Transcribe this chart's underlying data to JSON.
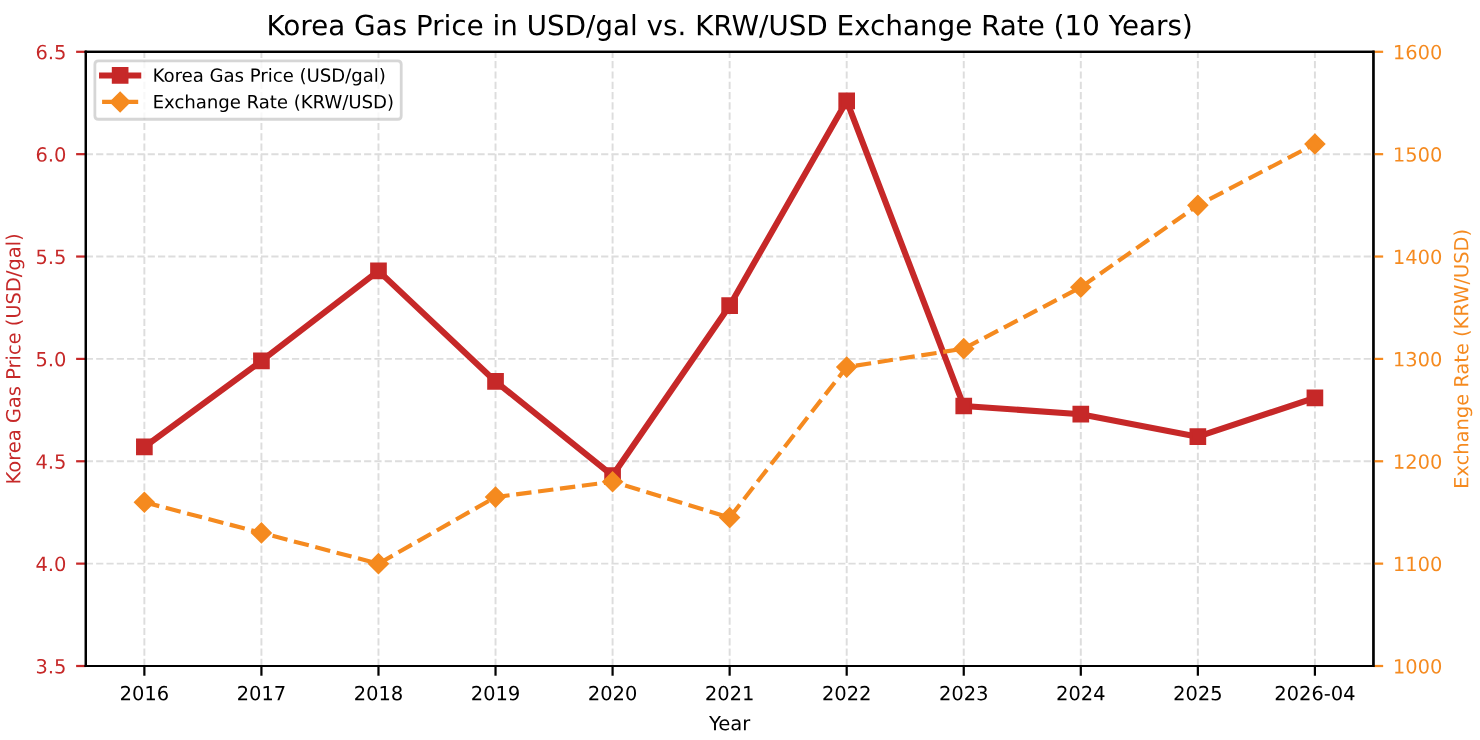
{
  "chart_data": {
    "type": "line",
    "title": "Korea Gas Price in USD/gal vs. KRW/USD Exchange Rate (10 Years)",
    "xlabel": "Year",
    "ylabel": "Korea Gas Price (USD/gal)",
    "y2label": "Exchange Rate (KRW/USD)",
    "categories": [
      "2016",
      "2017",
      "2018",
      "2019",
      "2020",
      "2021",
      "2022",
      "2023",
      "2024",
      "2025",
      "2026-04"
    ],
    "series": [
      {
        "name": "Korea Gas Price (USD/gal)",
        "color": "#c62828",
        "marker": "square",
        "line_style": "solid",
        "values": [
          4.57,
          4.99,
          5.43,
          4.89,
          4.43,
          5.26,
          6.26,
          4.77,
          4.73,
          4.62,
          4.81
        ]
      },
      {
        "name": "Exchange Rate (KRW/USD)",
        "color": "#f58a1f",
        "marker": "diamond",
        "line_style": "dashed",
        "axis": "y2",
        "values": [
          1160,
          1130,
          1100,
          1165,
          1180,
          1145,
          1292,
          1310,
          1370,
          1450,
          1510
        ]
      }
    ],
    "ylim": [
      3.5,
      6.5
    ],
    "yticks": [
      {
        "value": 3.5,
        "label": "3.5"
      },
      {
        "value": 4.0,
        "label": "4.0"
      },
      {
        "value": 4.5,
        "label": "4.5"
      },
      {
        "value": 5.0,
        "label": "5.0"
      },
      {
        "value": 5.5,
        "label": "5.5"
      },
      {
        "value": 6.0,
        "label": "6.0"
      },
      {
        "value": 6.5,
        "label": "6.5"
      }
    ],
    "y2lim": [
      1000,
      1600
    ],
    "y2ticks": [
      1000,
      1100,
      1200,
      1300,
      1400,
      1500,
      1600
    ],
    "grid": true,
    "legend": "top left"
  }
}
